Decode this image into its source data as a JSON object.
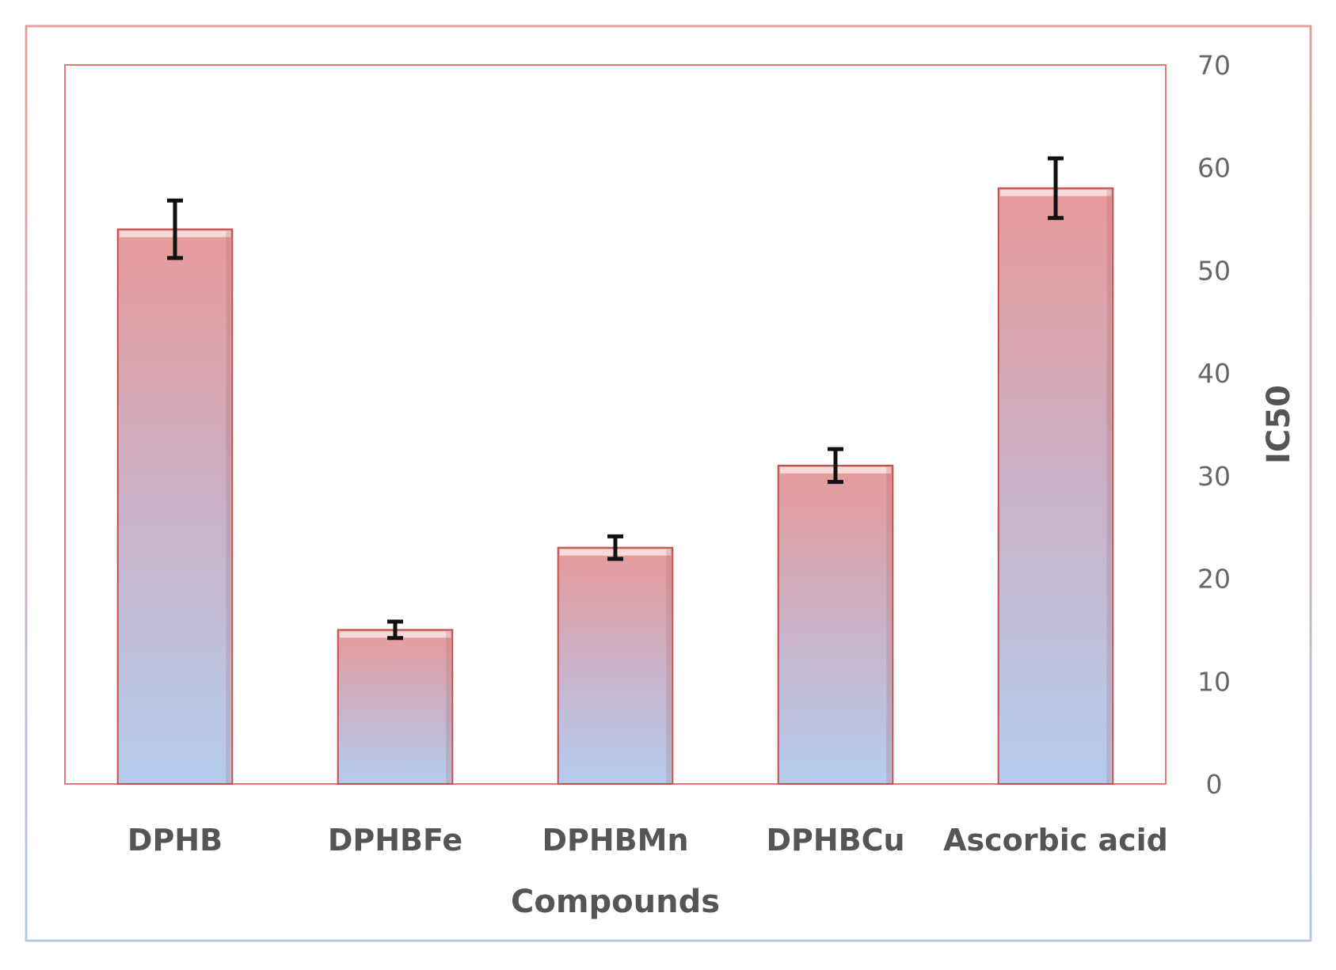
{
  "chart_data": {
    "type": "bar",
    "title": "",
    "xlabel": "Compounds",
    "ylabel": "IC50",
    "y_axis_side": "right",
    "ylim": [
      0,
      70
    ],
    "yticks": [
      0,
      10,
      20,
      30,
      40,
      50,
      60,
      70
    ],
    "categories": [
      "DPHB",
      "DPHBFe",
      "DPHBMn",
      "DPHBCu",
      "Ascorbic acid"
    ],
    "values": [
      54,
      15,
      23,
      31,
      58
    ],
    "errors": [
      2.8,
      0.8,
      1.1,
      1.6,
      2.9
    ],
    "grid": false,
    "legend": "none",
    "colors": {
      "bar_top": "#e89a9a",
      "bar_bottom": "#b3cdef",
      "bar_border": "#c0504d",
      "frame_border": "#e07a7a",
      "outer_border_top": "#e3a0a0",
      "outer_border_bottom": "#b8c8e0",
      "error_bar": "#111111"
    }
  }
}
